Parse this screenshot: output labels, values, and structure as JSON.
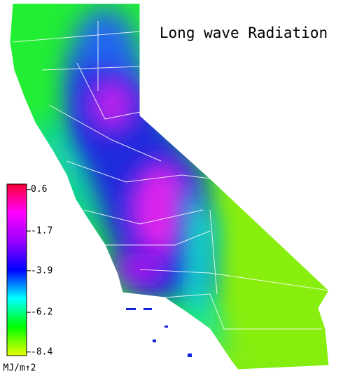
{
  "title": "Long wave Radiation",
  "colorbar": {
    "ticks": [
      0.6,
      -1.7,
      -3.9,
      -6.2,
      -8.4
    ],
    "range": [
      -8.6,
      0.9
    ],
    "unit": "MJ/m↑2",
    "colors": [
      "#e8ff00",
      "#00ff00",
      "#00ffff",
      "#0000ff",
      "#9900ff",
      "#ff00ff",
      "#ff0033"
    ]
  }
}
